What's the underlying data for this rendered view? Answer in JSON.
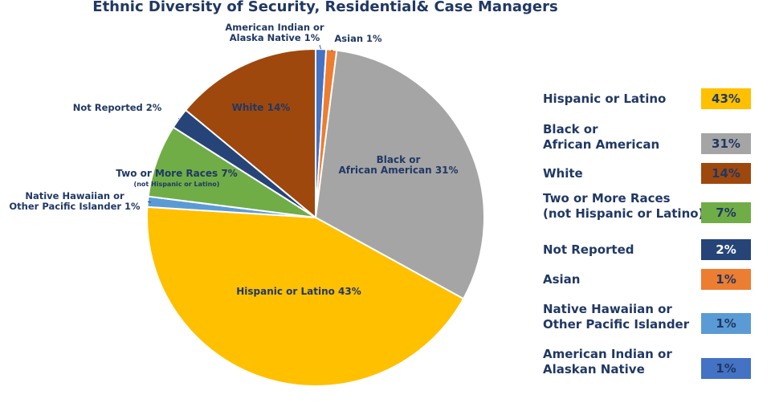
{
  "chart_data": {
    "type": "pie",
    "title": "Ethnic Diversity of Security, Residential& Case Managers",
    "slices": [
      {
        "label": "American Indian or Alaska Native 1%",
        "legend_lines": [
          "American Indian or",
          "Alaskan Native"
        ],
        "value": 1,
        "display": "1%",
        "color": "#4472C4"
      },
      {
        "label": "Asian 1%",
        "legend_lines": [
          "Asian"
        ],
        "value": 1,
        "display": "1%",
        "color": "#ED7D31"
      },
      {
        "label": "Black or African American 31%",
        "legend_lines": [
          "Black or",
          "African American"
        ],
        "value": 31,
        "display": "31%",
        "color": "#A5A5A5"
      },
      {
        "label": "Hispanic or Latino 43%",
        "legend_lines": [
          "Hispanic or Latino"
        ],
        "value": 43,
        "display": "43%",
        "color": "#FFC000"
      },
      {
        "label": "Native Hawaiian or Other Pacific Islander 1%",
        "legend_lines": [
          "Native Hawaiian or",
          "Other Pacific Islander"
        ],
        "value": 1,
        "display": "1%",
        "color": "#5B9BD5"
      },
      {
        "label": "Two or More Races 7%",
        "sublabel": "(not Hispanic or Latino)",
        "legend_lines": [
          "Two or More Races",
          "(not Hispanic or Latino)"
        ],
        "value": 7,
        "display": "7%",
        "color": "#70AD47"
      },
      {
        "label": "Not Reported 2%",
        "legend_lines": [
          "Not Reported"
        ],
        "value": 2,
        "display": "2%",
        "color": "#264478"
      },
      {
        "label": "White 14%",
        "legend_lines": [
          "White"
        ],
        "value": 14,
        "display": "14%",
        "color": "#9E480E"
      }
    ],
    "legend_order": [
      "Hispanic or Latino 43%",
      "Black or African American 31%",
      "White 14%",
      "Two or More Races 7%",
      "Not Reported 2%",
      "Asian 1%",
      "Native Hawaiian or Other Pacific Islander 1%",
      "American Indian or Alaska Native 1%"
    ],
    "legend_placement": "right",
    "start_angle_deg": 0,
    "direction": "clockwise"
  },
  "colors": {
    "text": "#203864"
  }
}
